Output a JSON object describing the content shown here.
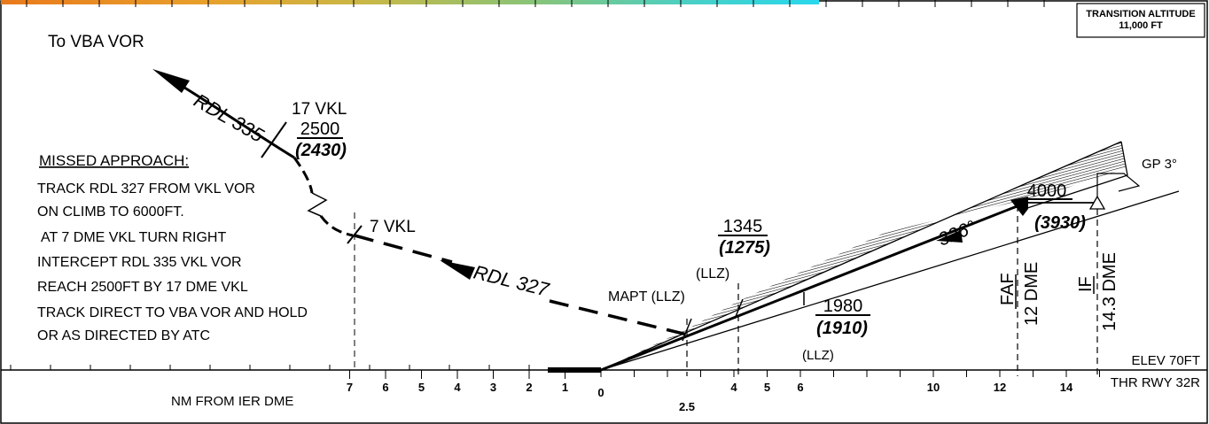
{
  "transition_altitude": {
    "title": "TRANSITION ALTITUDE",
    "value": "11,000 FT"
  },
  "destination_label": "To VBA VOR",
  "radials": {
    "outbound": "RDL 335",
    "missed": "RDL 327",
    "approach_course": "326°"
  },
  "fixes": {
    "vkl17": {
      "label": "17 VKL",
      "alt": "2500",
      "alt_qfe": "(2430)"
    },
    "vkl7": {
      "label": "7 VKL"
    },
    "mapt": {
      "label": "MAPT (LLZ)"
    },
    "llz4": {
      "label": "(LLZ)",
      "alt": "1345",
      "alt_qfe": "(1275)"
    },
    "llz6": {
      "label": "(LLZ)",
      "alt": "1980",
      "alt_qfe": "(1910)"
    },
    "faf": {
      "label": "FAF",
      "dme": "12 DME",
      "alt": "4000",
      "alt_qfe": "(3930)"
    },
    "if": {
      "label": "IF",
      "dme": "14.3 DME"
    }
  },
  "glidepath": "GP 3°",
  "missed_approach": {
    "title": "MISSED APPROACH:",
    "lines": [
      "TRACK RDL 327 FROM VKL VOR",
      "ON CLIMB TO 6000FT.",
      "AT 7 DME VKL TURN RIGHT",
      "INTERCEPT RDL 335 VKL VOR",
      "REACH 2500FT BY 17 DME VKL",
      "TRACK DIRECT TO VBA VOR AND HOLD",
      "OR AS DIRECTED BY ATC"
    ]
  },
  "elevation": "ELEV 70FT",
  "threshold": "THR RWY 32R",
  "scale": {
    "label": "NM FROM IER DME",
    "left_ticks": [
      "7",
      "6",
      "5",
      "4",
      "3",
      "2",
      "1"
    ],
    "right_ticks": [
      "0",
      "2.5",
      "4",
      "5",
      "6",
      "10",
      "12",
      "14"
    ]
  },
  "colors": {
    "rainbow": [
      "#e87a1c",
      "#e89a2a",
      "#d4b040",
      "#a8c060",
      "#70c8a0",
      "#40d0d0",
      "#30d8e8"
    ]
  }
}
